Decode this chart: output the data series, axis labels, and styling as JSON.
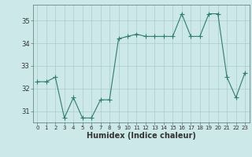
{
  "x": [
    0,
    1,
    2,
    3,
    4,
    5,
    6,
    7,
    8,
    9,
    10,
    11,
    12,
    13,
    14,
    15,
    16,
    17,
    18,
    19,
    20,
    21,
    22,
    23
  ],
  "y": [
    32.3,
    32.3,
    32.5,
    30.7,
    31.6,
    30.7,
    30.7,
    31.5,
    31.5,
    34.2,
    34.3,
    34.4,
    34.3,
    34.3,
    34.3,
    34.3,
    35.3,
    34.3,
    34.3,
    35.3,
    35.3,
    32.5,
    31.6,
    32.7
  ],
  "line_color": "#2e7d6e",
  "marker": "+",
  "marker_size": 4,
  "marker_linewidth": 0.8,
  "line_width": 0.8,
  "bg_color": "#cce8e8",
  "grid_color": "#aacccc",
  "xlabel": "Humidex (Indice chaleur)",
  "ylim": [
    30.5,
    35.7
  ],
  "xlim": [
    -0.5,
    23.5
  ],
  "yticks": [
    31,
    32,
    33,
    34,
    35
  ],
  "xticks": [
    0,
    1,
    2,
    3,
    4,
    5,
    6,
    7,
    8,
    9,
    10,
    11,
    12,
    13,
    14,
    15,
    16,
    17,
    18,
    19,
    20,
    21,
    22,
    23
  ],
  "tick_labelsize": 6,
  "xlabel_fontsize": 7,
  "spine_color": "#557777"
}
